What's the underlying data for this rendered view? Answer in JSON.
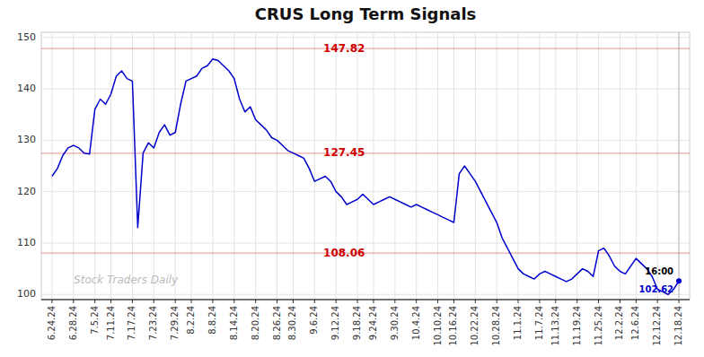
{
  "chart_data": {
    "type": "line",
    "title": "CRUS Long Term Signals",
    "color": "#0000cc",
    "grid": true,
    "ylim": [
      99,
      151
    ],
    "yticks": [
      100,
      110,
      120,
      130,
      140,
      150
    ],
    "categories": [
      "6.24.24",
      null,
      null,
      null,
      "6.28.24",
      null,
      null,
      null,
      "7.5.24",
      null,
      null,
      "7.11.24",
      null,
      null,
      null,
      "7.17.24",
      null,
      null,
      null,
      "7.23.24",
      null,
      null,
      null,
      "7.29.24",
      null,
      null,
      "8.2.24",
      null,
      null,
      null,
      "8.8.24",
      null,
      null,
      null,
      "8.14.24",
      null,
      null,
      null,
      "8.20.24",
      null,
      null,
      null,
      "8.26.24",
      null,
      null,
      "8.30.24",
      null,
      null,
      null,
      "9.6.24",
      null,
      null,
      null,
      "9.12.24",
      null,
      null,
      null,
      "9.18.24",
      null,
      null,
      "9.24.24",
      null,
      null,
      null,
      "9.30.24",
      null,
      null,
      null,
      "10.4.24",
      null,
      null,
      null,
      "10.10.24",
      null,
      null,
      "10.16.24",
      null,
      null,
      null,
      "10.22.24",
      null,
      null,
      null,
      "10.28.24",
      null,
      null,
      null,
      "11.1.24",
      null,
      null,
      null,
      "11.7.24",
      null,
      null,
      "11.13.24",
      null,
      null,
      null,
      "11.19.24",
      null,
      null,
      null,
      "11.25.24",
      null,
      null,
      null,
      "12.2.24",
      null,
      null,
      "12.6.24",
      null,
      null,
      null,
      "12.12.24",
      null,
      null,
      null,
      "12.18.24"
    ],
    "values": [
      123.0,
      124.5,
      127.0,
      128.5,
      129.0,
      128.5,
      127.5,
      127.3,
      136.0,
      138.0,
      137.0,
      139.0,
      142.5,
      143.5,
      142.0,
      141.5,
      113.0,
      127.5,
      129.5,
      128.5,
      131.5,
      133.0,
      131.0,
      131.5,
      137.0,
      141.5,
      142.0,
      142.5,
      144.0,
      144.5,
      145.8,
      145.5,
      144.5,
      143.5,
      142.0,
      138.0,
      135.5,
      136.5,
      134.0,
      133.0,
      132.0,
      130.5,
      130.0,
      129.0,
      128.0,
      127.5,
      127.0,
      126.5,
      124.5,
      122.0,
      122.5,
      123.0,
      122.0,
      120.0,
      119.0,
      117.5,
      118.0,
      118.5,
      119.5,
      118.5,
      117.5,
      118.0,
      118.5,
      119.0,
      118.5,
      118.0,
      117.5,
      117.0,
      117.5,
      117.0,
      116.5,
      116.0,
      115.5,
      115.0,
      114.5,
      114.0,
      123.5,
      125.0,
      123.5,
      122.0,
      120.0,
      118.0,
      116.0,
      114.0,
      111.0,
      109.0,
      107.0,
      105.0,
      104.0,
      103.5,
      103.0,
      104.0,
      104.5,
      104.0,
      103.5,
      103.0,
      102.5,
      103.0,
      104.0,
      105.0,
      104.5,
      103.5,
      108.5,
      109.0,
      107.5,
      105.5,
      104.5,
      104.0,
      105.5,
      107.0,
      106.0,
      105.0,
      103.5,
      101.0,
      100.5,
      100.0,
      101.0,
      102.62
    ],
    "reference_lines": [
      {
        "value": 147.82,
        "label": "147.82",
        "color": "#cc0000"
      },
      {
        "value": 127.45,
        "label": "127.45",
        "color": "#cc0000"
      },
      {
        "value": 108.06,
        "label": "108.06",
        "color": "#cc0000"
      }
    ],
    "annotations": [
      {
        "text": "16:00",
        "x": "12.18.24",
        "y": 102.62,
        "position": "above"
      },
      {
        "text": "102.62",
        "x": "12.18.24",
        "y": 102.62,
        "position": "below"
      },
      {
        "text": "Stock Traders Daily",
        "position": "bottom-left"
      }
    ]
  }
}
